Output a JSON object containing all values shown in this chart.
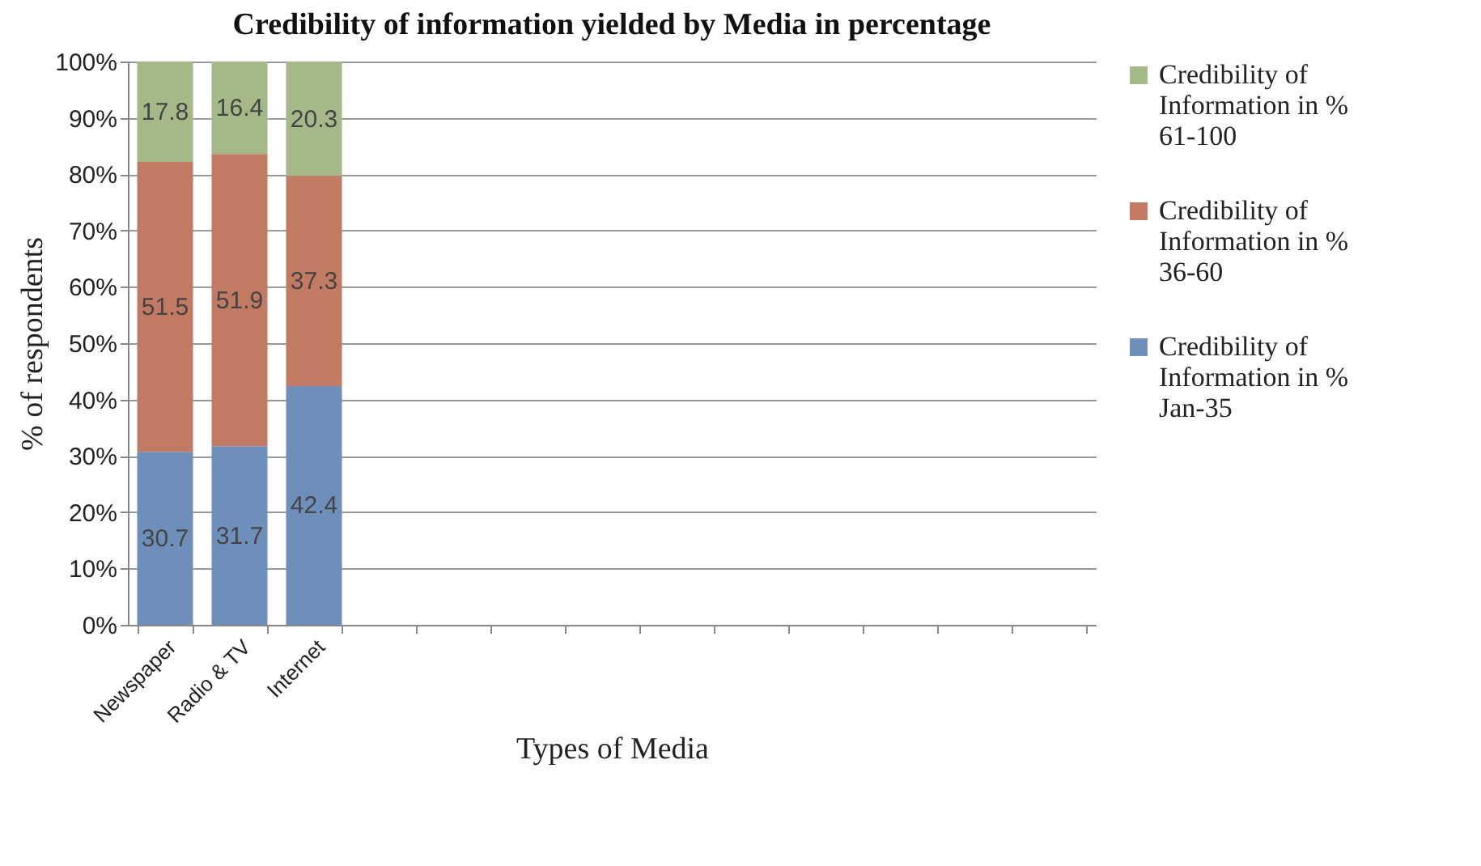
{
  "chart_data": {
    "type": "bar",
    "title": "Credibility of information yielded by Media in percentage",
    "xlabel": "Types of Media",
    "ylabel": "% of respondents",
    "categories": [
      "Newspaper",
      "Radio & TV",
      "Internet",
      null,
      null,
      null,
      null,
      null,
      null,
      null,
      null,
      null,
      null
    ],
    "stacked": true,
    "data_labels": true,
    "grid": "y",
    "legend": "right",
    "ylim": [
      0,
      100
    ],
    "yticks": [
      {
        "value": 0,
        "label": "0%"
      },
      {
        "value": 10,
        "label": "10%"
      },
      {
        "value": 20,
        "label": "20%"
      },
      {
        "value": 30,
        "label": "30%"
      },
      {
        "value": 40,
        "label": "40%"
      },
      {
        "value": 50,
        "label": "50%"
      },
      {
        "value": 60,
        "label": "60%"
      },
      {
        "value": 70,
        "label": "70%"
      },
      {
        "value": 80,
        "label": "80%"
      },
      {
        "value": 90,
        "label": "90%"
      },
      {
        "value": 100,
        "label": "100%"
      }
    ],
    "series": [
      {
        "name": "Credibility of Information in % Jan-35",
        "color": "#6f8fbb",
        "values": [
          30.7,
          31.7,
          42.4,
          null,
          null,
          null,
          null,
          null,
          null,
          null,
          null,
          null,
          null
        ]
      },
      {
        "name": "Credibility of Information in % 36-60",
        "color": "#c27a63",
        "values": [
          51.5,
          51.9,
          37.3,
          null,
          null,
          null,
          null,
          null,
          null,
          null,
          null,
          null,
          null
        ]
      },
      {
        "name": "Credibility of Information in % 61-100",
        "color": "#a5b887",
        "values": [
          17.8,
          16.4,
          20.3,
          null,
          null,
          null,
          null,
          null,
          null,
          null,
          null,
          null,
          null
        ]
      }
    ]
  }
}
